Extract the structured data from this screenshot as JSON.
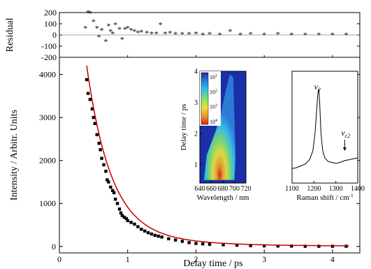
{
  "chart_data": [
    {
      "id": "residual",
      "type": "scatter",
      "ylabel": "Residual",
      "xlim": [
        0,
        4.4
      ],
      "ylim": [
        -200,
        200
      ],
      "yticks": [
        "200",
        "100",
        "0",
        "-100",
        "-200"
      ],
      "marker": "asterisk",
      "series": [
        {
          "x": [
            0.38,
            0.42,
            0.45,
            0.5,
            0.55,
            0.58,
            0.62,
            0.68,
            0.72,
            0.75,
            0.78,
            0.82,
            0.88,
            0.92,
            0.96,
            1.0,
            1.05,
            1.1,
            1.15,
            1.2,
            1.28,
            1.35,
            1.42,
            1.48,
            1.55,
            1.62,
            1.7,
            1.8,
            1.9,
            2.0,
            2.1,
            2.2,
            2.35,
            2.5,
            2.65,
            2.8,
            3.0,
            3.2,
            3.4,
            3.6,
            3.8,
            4.0,
            4.2
          ],
          "y": [
            60,
            200,
            195,
            120,
            60,
            -20,
            40,
            -60,
            80,
            30,
            10,
            90,
            50,
            -40,
            50,
            60,
            40,
            30,
            20,
            25,
            15,
            10,
            10,
            90,
            10,
            15,
            5,
            5,
            5,
            10,
            0,
            5,
            0,
            30,
            0,
            5,
            0,
            5,
            0,
            0,
            0,
            0,
            0
          ]
        }
      ]
    },
    {
      "id": "decay",
      "type": "scatter",
      "xlabel": "Delay time / ps",
      "ylabel": "Intensity / Arbitr. Units",
      "xlim": [
        0,
        4.4
      ],
      "ylim": [
        -150,
        4400
      ],
      "xticks": [
        "0",
        "1",
        "2",
        "3",
        "4"
      ],
      "yticks": [
        "0",
        "1000",
        "2000",
        "3000",
        "4000"
      ],
      "marker_color": "#000000",
      "fit_color": "#c00000",
      "series": [
        {
          "x": [
            0.4,
            0.42,
            0.45,
            0.48,
            0.5,
            0.52,
            0.55,
            0.58,
            0.6,
            0.62,
            0.65,
            0.68,
            0.7,
            0.72,
            0.75,
            0.78,
            0.8,
            0.82,
            0.85,
            0.88,
            0.9,
            0.92,
            0.95,
            0.98,
            1.0,
            1.05,
            1.1,
            1.15,
            1.2,
            1.25,
            1.3,
            1.35,
            1.4,
            1.45,
            1.5,
            1.6,
            1.7,
            1.8,
            1.9,
            2.0,
            2.1,
            2.2,
            2.4,
            2.6,
            2.8,
            3.0,
            3.2,
            3.4,
            3.6,
            3.8,
            4.0,
            4.2
          ],
          "y": [
            3880,
            3560,
            3420,
            3200,
            3000,
            2860,
            2600,
            2400,
            2250,
            2050,
            1900,
            1750,
            1550,
            1500,
            1380,
            1300,
            1250,
            1100,
            1000,
            870,
            780,
            720,
            680,
            650,
            600,
            560,
            520,
            460,
            400,
            360,
            320,
            290,
            260,
            240,
            220,
            180,
            150,
            120,
            90,
            70,
            60,
            50,
            40,
            30,
            20,
            15,
            10,
            10,
            5,
            5,
            5,
            5
          ]
        }
      ]
    },
    {
      "id": "inset-heatmap",
      "type": "heatmap",
      "xlabel": "Wavelength / nm",
      "ylabel": "Delay time / ps",
      "xlim": [
        640,
        720
      ],
      "ylim": [
        0.4,
        4
      ],
      "xticks": [
        "640",
        "660",
        "680",
        "700",
        "720"
      ],
      "yticks": [
        "1",
        "2",
        "3",
        "4"
      ],
      "colorbar": {
        "labels": [
          "10",
          "10",
          "10",
          "10"
        ],
        "exponents": [
          "1",
          "2",
          "3",
          "4"
        ],
        "colors": [
          "#1a2fa8",
          "#2c7fd8",
          "#39c2e8",
          "#7ee06a",
          "#e8e040",
          "#f29a24",
          "#d8281c"
        ]
      }
    },
    {
      "id": "inset-raman",
      "type": "line",
      "xlabel": "Raman shift / cm",
      "xlabel_superscript": "-1",
      "xlim": [
        1100,
        1400
      ],
      "xticks": [
        "1100",
        "1200",
        "1300",
        "1400"
      ],
      "annotations": [
        {
          "text": "v",
          "subscript": "2",
          "x": 1220
        },
        {
          "text": "v",
          "subscript": "c2",
          "x": 1350
        }
      ],
      "series": [
        {
          "x": [
            1100,
            1120,
            1140,
            1160,
            1180,
            1195,
            1205,
            1212,
            1218,
            1222,
            1226,
            1232,
            1240,
            1250,
            1265,
            1280,
            1300,
            1320,
            1340,
            1360,
            1380,
            1400
          ],
          "y": [
            0.1,
            0.11,
            0.13,
            0.15,
            0.2,
            0.3,
            0.5,
            0.75,
            0.95,
            1.0,
            0.85,
            0.5,
            0.3,
            0.22,
            0.18,
            0.17,
            0.16,
            0.17,
            0.19,
            0.2,
            0.21,
            0.22
          ]
        }
      ]
    }
  ]
}
